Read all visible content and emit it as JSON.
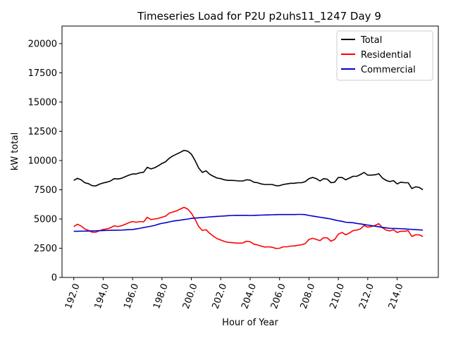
{
  "chart_data": {
    "type": "line",
    "title": "Timeseries Load for P2U p2uhs11_1247  Day 9",
    "xlabel": "Hour of Year",
    "ylabel": "kW total",
    "xlim": [
      191.2,
      216.8
    ],
    "ylim": [
      0,
      21500
    ],
    "xticks": [
      192.0,
      194.0,
      196.0,
      198.0,
      200.0,
      202.0,
      204.0,
      206.0,
      208.0,
      210.0,
      212.0,
      214.0
    ],
    "xtick_labels": [
      "192.0",
      "194.0",
      "196.0",
      "198.0",
      "200.0",
      "202.0",
      "204.0",
      "206.0",
      "208.0",
      "210.0",
      "212.0",
      "214.0"
    ],
    "yticks": [
      0,
      2500,
      5000,
      7500,
      10000,
      12500,
      15000,
      17500,
      20000
    ],
    "ytick_labels": [
      "0",
      "2500",
      "5000",
      "7500",
      "10000",
      "12500",
      "15000",
      "17500",
      "20000"
    ],
    "legend_position": "upper-right",
    "x": [
      192.0,
      192.25,
      192.5,
      192.75,
      193.0,
      193.25,
      193.5,
      193.75,
      194.0,
      194.25,
      194.5,
      194.75,
      195.0,
      195.25,
      195.5,
      195.75,
      196.0,
      196.25,
      196.5,
      196.75,
      197.0,
      197.25,
      197.5,
      197.75,
      198.0,
      198.25,
      198.5,
      198.75,
      199.0,
      199.25,
      199.5,
      199.75,
      200.0,
      200.25,
      200.5,
      200.75,
      201.0,
      201.25,
      201.5,
      201.75,
      202.0,
      202.25,
      202.5,
      202.75,
      203.0,
      203.25,
      203.5,
      203.75,
      204.0,
      204.25,
      204.5,
      204.75,
      205.0,
      205.25,
      205.5,
      205.75,
      206.0,
      206.25,
      206.5,
      206.75,
      207.0,
      207.25,
      207.5,
      207.75,
      208.0,
      208.25,
      208.5,
      208.75,
      209.0,
      209.25,
      209.5,
      209.75,
      210.0,
      210.25,
      210.5,
      210.75,
      211.0,
      211.25,
      211.5,
      211.75,
      212.0,
      212.25,
      212.5,
      212.75,
      213.0,
      213.25,
      213.5,
      213.75,
      214.0,
      214.25,
      214.5,
      214.75,
      215.0,
      215.25,
      215.5,
      215.75
    ],
    "series": [
      {
        "name": "Total",
        "color": "#000000",
        "values": [
          8300,
          8480,
          8350,
          8100,
          8020,
          7850,
          7830,
          7980,
          8080,
          8150,
          8250,
          8450,
          8420,
          8480,
          8620,
          8750,
          8850,
          8850,
          8950,
          9000,
          9420,
          9280,
          9380,
          9550,
          9750,
          9900,
          10200,
          10400,
          10550,
          10700,
          10870,
          10800,
          10550,
          10000,
          9350,
          8980,
          9120,
          8820,
          8650,
          8500,
          8450,
          8350,
          8300,
          8300,
          8280,
          8250,
          8250,
          8350,
          8320,
          8150,
          8100,
          8000,
          7950,
          7950,
          7950,
          7850,
          7850,
          7950,
          8000,
          8050,
          8050,
          8100,
          8100,
          8200,
          8450,
          8550,
          8450,
          8250,
          8450,
          8400,
          8100,
          8150,
          8550,
          8550,
          8350,
          8500,
          8650,
          8650,
          8800,
          8980,
          8750,
          8750,
          8780,
          8870,
          8500,
          8300,
          8200,
          8280,
          8000,
          8150,
          8100,
          8100,
          7600,
          7750,
          7700,
          7500
        ]
      },
      {
        "name": "Residential",
        "color": "#ff0000",
        "values": [
          4350,
          4550,
          4400,
          4150,
          4020,
          3870,
          3870,
          4000,
          4100,
          4150,
          4250,
          4420,
          4350,
          4420,
          4550,
          4680,
          4780,
          4720,
          4780,
          4750,
          5150,
          4950,
          5000,
          5050,
          5150,
          5250,
          5500,
          5600,
          5700,
          5850,
          6000,
          5850,
          5500,
          4980,
          4350,
          4020,
          4080,
          3770,
          3520,
          3320,
          3200,
          3080,
          3000,
          2980,
          2950,
          2930,
          2950,
          3100,
          3050,
          2850,
          2780,
          2680,
          2600,
          2620,
          2580,
          2480,
          2500,
          2620,
          2620,
          2680,
          2700,
          2750,
          2800,
          2900,
          3250,
          3350,
          3250,
          3150,
          3400,
          3380,
          3100,
          3250,
          3700,
          3850,
          3650,
          3800,
          4000,
          4050,
          4150,
          4450,
          4300,
          4350,
          4450,
          4600,
          4250,
          4050,
          3980,
          4080,
          3850,
          3950,
          3950,
          4000,
          3500,
          3650,
          3650,
          3500
        ]
      },
      {
        "name": "Commercial",
        "color": "#0000cc",
        "values": [
          3950,
          3950,
          3960,
          3960,
          3970,
          3980,
          3990,
          4000,
          4010,
          4020,
          4030,
          4040,
          4040,
          4050,
          4070,
          4090,
          4100,
          4150,
          4200,
          4270,
          4320,
          4380,
          4450,
          4550,
          4630,
          4680,
          4750,
          4820,
          4860,
          4900,
          4950,
          4990,
          5050,
          5080,
          5100,
          5120,
          5150,
          5180,
          5200,
          5220,
          5240,
          5260,
          5280,
          5300,
          5310,
          5310,
          5310,
          5310,
          5300,
          5310,
          5320,
          5330,
          5340,
          5350,
          5360,
          5370,
          5380,
          5380,
          5380,
          5380,
          5380,
          5390,
          5390,
          5370,
          5300,
          5250,
          5200,
          5150,
          5100,
          5050,
          5000,
          4920,
          4850,
          4800,
          4720,
          4700,
          4680,
          4620,
          4580,
          4530,
          4480,
          4430,
          4380,
          4330,
          4280,
          4240,
          4200,
          4190,
          4180,
          4170,
          4150,
          4130,
          4110,
          4090,
          4070,
          4050
        ]
      }
    ]
  }
}
